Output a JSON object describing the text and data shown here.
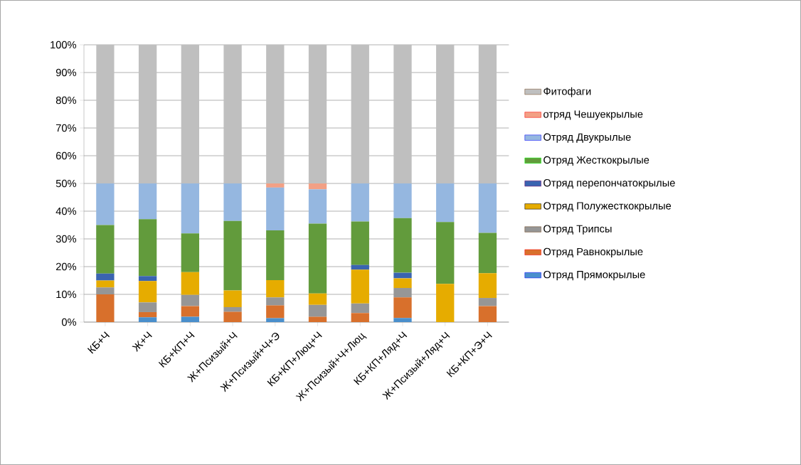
{
  "chart_data": {
    "type": "bar",
    "stacked": true,
    "categories": [
      "КБ+Ч",
      "Ж+Ч",
      "КБ+КП+Ч",
      "Ж+Псизый+Ч",
      "Ж+Псизый+Ч+Э",
      "КБ+КП+Люц+Ч",
      "Ж+Псизый+Ч+Люц",
      "КБ+КП+Ляд+Ч",
      "Ж+Псизый+Ляд+Ч",
      "КБ+КП+Э+Ч"
    ],
    "series": [
      {
        "name": "Отряд Прямокрылые",
        "color": "#4a8fcc",
        "values": [
          0,
          1.7,
          1.9,
          0,
          1.4,
          0,
          0,
          1.5,
          0,
          0
        ]
      },
      {
        "name": "Отряд Равнокрылые",
        "color": "#d8702c",
        "values": [
          10,
          1.9,
          3.9,
          3.7,
          4.6,
          1.9,
          3.3,
          7.4,
          0,
          5.8
        ]
      },
      {
        "name": "Отряд Трипсы",
        "color": "#969696",
        "values": [
          2.5,
          3.5,
          4.0,
          1.7,
          2.9,
          4.3,
          3.4,
          3.4,
          0,
          2.9
        ]
      },
      {
        "name": "Отряд Полужесткокрылые",
        "color": "#e6ac00",
        "values": [
          2.5,
          7.7,
          8.2,
          6.0,
          6.2,
          4.1,
          12.2,
          3.5,
          13.8,
          8.9
        ]
      },
      {
        "name": "Отряд перепончатокрылые",
        "color": "#3a64b0",
        "values": [
          2.5,
          1.8,
          0,
          0,
          0,
          0,
          1.7,
          2.0,
          0,
          0
        ]
      },
      {
        "name": "Отряд Жесткокрылые",
        "color": "#629b3c",
        "values": [
          17.5,
          20.5,
          14.0,
          25.1,
          18.0,
          25.2,
          15.7,
          19.7,
          22.3,
          14.6
        ]
      },
      {
        "name": "Отряд Двукрылые",
        "color": "#95b7e0",
        "values": [
          15,
          12.9,
          18.0,
          13.5,
          15.4,
          12.4,
          13.7,
          12.5,
          13.9,
          17.8
        ]
      },
      {
        "name": "отряд Чешуекрылые",
        "color": "#f2a085",
        "values": [
          0,
          0,
          0,
          0,
          1.5,
          2.1,
          0,
          0,
          0,
          0
        ]
      },
      {
        "name": "Фитофаги",
        "color": "#bfbfbf",
        "values": [
          50,
          50,
          50,
          50,
          50,
          50,
          50,
          50,
          50,
          50
        ]
      }
    ],
    "ylim": [
      0,
      100
    ],
    "yticks": [
      {
        "value": 0,
        "label": "0%"
      },
      {
        "value": 10,
        "label": "10%"
      },
      {
        "value": 20,
        "label": "20%"
      },
      {
        "value": 30,
        "label": "30%"
      },
      {
        "value": 40,
        "label": "40%"
      },
      {
        "value": 50,
        "label": "50%"
      },
      {
        "value": 60,
        "label": "60%"
      },
      {
        "value": 70,
        "label": "70%"
      },
      {
        "value": 80,
        "label": "80%"
      },
      {
        "value": 90,
        "label": "90%"
      },
      {
        "value": 100,
        "label": "100%"
      }
    ],
    "grid": "y",
    "legend": "right"
  }
}
